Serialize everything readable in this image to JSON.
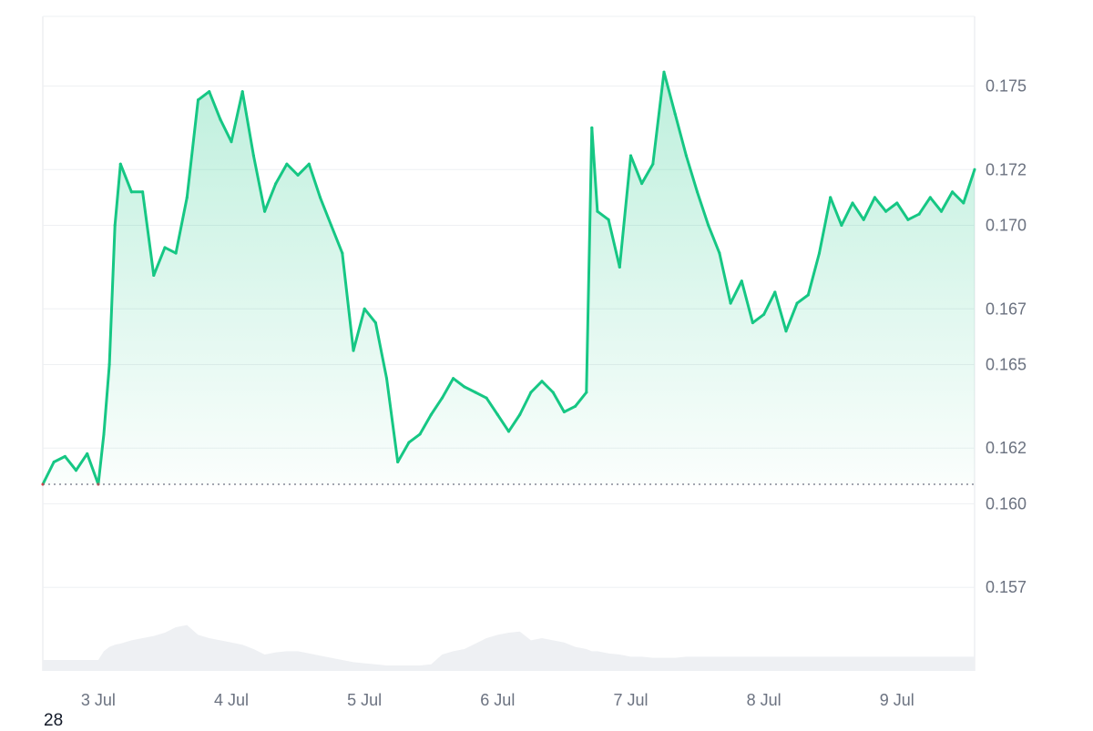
{
  "corner_label": "28",
  "chart_data": {
    "type": "area",
    "y_ticks": [
      "0.175",
      "0.172",
      "0.170",
      "0.167",
      "0.165",
      "0.162",
      "0.160",
      "0.157"
    ],
    "x_ticks": [
      "3 Jul",
      "4 Jul",
      "5 Jul",
      "6 Jul",
      "7 Jul",
      "8 Jul",
      "9 Jul"
    ],
    "ylim": [
      0.154,
      0.1775
    ],
    "xlim": [
      "2 Jul 14:00",
      "9 Jul 14:00"
    ],
    "baseline": 0.1607,
    "colors": {
      "up": "#16c784",
      "down": "#ea3943",
      "volume": "#eef0f3",
      "grid": "#eef0f3"
    },
    "series": [
      {
        "x": [
          "2 Jul 14:00",
          "2 Jul 16:00",
          "2 Jul 18:00",
          "2 Jul 20:00",
          "2 Jul 22:00",
          "3 Jul 00:00",
          "3 Jul 01:00",
          "3 Jul 02:00",
          "3 Jul 03:00",
          "3 Jul 04:00",
          "3 Jul 06:00",
          "3 Jul 08:00",
          "3 Jul 10:00",
          "3 Jul 12:00",
          "3 Jul 14:00",
          "3 Jul 16:00",
          "3 Jul 18:00",
          "3 Jul 20:00",
          "3 Jul 22:00",
          "4 Jul 00:00",
          "4 Jul 02:00",
          "4 Jul 04:00",
          "4 Jul 06:00",
          "4 Jul 08:00",
          "4 Jul 10:00",
          "4 Jul 12:00",
          "4 Jul 14:00",
          "4 Jul 16:00",
          "4 Jul 18:00",
          "4 Jul 20:00",
          "4 Jul 22:00",
          "5 Jul 00:00",
          "5 Jul 02:00",
          "5 Jul 04:00",
          "5 Jul 06:00",
          "5 Jul 08:00",
          "5 Jul 10:00",
          "5 Jul 12:00",
          "5 Jul 14:00",
          "5 Jul 16:00",
          "5 Jul 18:00",
          "5 Jul 20:00",
          "5 Jul 22:00",
          "6 Jul 00:00",
          "6 Jul 02:00",
          "6 Jul 04:00",
          "6 Jul 06:00",
          "6 Jul 08:00",
          "6 Jul 10:00",
          "6 Jul 12:00",
          "6 Jul 14:00",
          "6 Jul 16:00",
          "6 Jul 17:00",
          "6 Jul 18:00",
          "6 Jul 20:00",
          "6 Jul 22:00",
          "7 Jul 00:00",
          "7 Jul 02:00",
          "7 Jul 04:00",
          "7 Jul 06:00",
          "7 Jul 08:00",
          "7 Jul 10:00",
          "7 Jul 12:00",
          "7 Jul 14:00",
          "7 Jul 16:00",
          "7 Jul 18:00",
          "7 Jul 20:00",
          "7 Jul 22:00",
          "8 Jul 00:00",
          "8 Jul 02:00",
          "8 Jul 04:00",
          "8 Jul 06:00",
          "8 Jul 08:00",
          "8 Jul 10:00",
          "8 Jul 12:00",
          "8 Jul 14:00",
          "8 Jul 16:00",
          "8 Jul 18:00",
          "8 Jul 20:00",
          "8 Jul 22:00",
          "9 Jul 00:00",
          "9 Jul 02:00",
          "9 Jul 04:00",
          "9 Jul 06:00",
          "9 Jul 08:00",
          "9 Jul 10:00",
          "9 Jul 12:00",
          "9 Jul 14:00"
        ],
        "price": [
          0.1607,
          0.1615,
          0.1617,
          0.1612,
          0.1618,
          0.1607,
          0.1625,
          0.165,
          0.17,
          0.1722,
          0.1712,
          0.1712,
          0.1682,
          0.1692,
          0.169,
          0.171,
          0.1745,
          0.1748,
          0.1738,
          0.173,
          0.1748,
          0.1725,
          0.1705,
          0.1715,
          0.1722,
          0.1718,
          0.1722,
          0.171,
          0.17,
          0.169,
          0.1655,
          0.167,
          0.1665,
          0.1645,
          0.1615,
          0.1622,
          0.1625,
          0.1632,
          0.1638,
          0.1645,
          0.1642,
          0.164,
          0.1638,
          0.1632,
          0.1626,
          0.1632,
          0.164,
          0.1644,
          0.164,
          0.1633,
          0.1635,
          0.164,
          0.1735,
          0.1705,
          0.1702,
          0.1685,
          0.1725,
          0.1715,
          0.1722,
          0.1755,
          0.174,
          0.1725,
          0.1712,
          0.17,
          0.169,
          0.1672,
          0.168,
          0.1665,
          0.1668,
          0.1676,
          0.1662,
          0.1672,
          0.1675,
          0.169,
          0.171,
          0.17,
          0.1708,
          0.1702,
          0.171,
          0.1705,
          0.1708,
          0.1702,
          0.1704,
          0.171,
          0.1705,
          0.1712,
          0.1708,
          0.172
        ],
        "volume": [
          0.1,
          0.1,
          0.1,
          0.1,
          0.1,
          0.1,
          0.18,
          0.22,
          0.24,
          0.25,
          0.28,
          0.3,
          0.32,
          0.35,
          0.4,
          0.42,
          0.33,
          0.3,
          0.28,
          0.26,
          0.24,
          0.2,
          0.15,
          0.17,
          0.18,
          0.18,
          0.16,
          0.14,
          0.12,
          0.1,
          0.08,
          0.07,
          0.06,
          0.05,
          0.05,
          0.05,
          0.05,
          0.06,
          0.15,
          0.18,
          0.2,
          0.25,
          0.3,
          0.33,
          0.35,
          0.36,
          0.28,
          0.3,
          0.28,
          0.26,
          0.22,
          0.2,
          0.18,
          0.18,
          0.16,
          0.15,
          0.13,
          0.13,
          0.12,
          0.12,
          0.12,
          0.13,
          0.13,
          0.13,
          0.13,
          0.13,
          0.13,
          0.13,
          0.13,
          0.13,
          0.13,
          0.13,
          0.13,
          0.13,
          0.13,
          0.13,
          0.13,
          0.13,
          0.13,
          0.13,
          0.13,
          0.13,
          0.13,
          0.13,
          0.13,
          0.13,
          0.13,
          0.13
        ]
      }
    ],
    "grid": true
  }
}
